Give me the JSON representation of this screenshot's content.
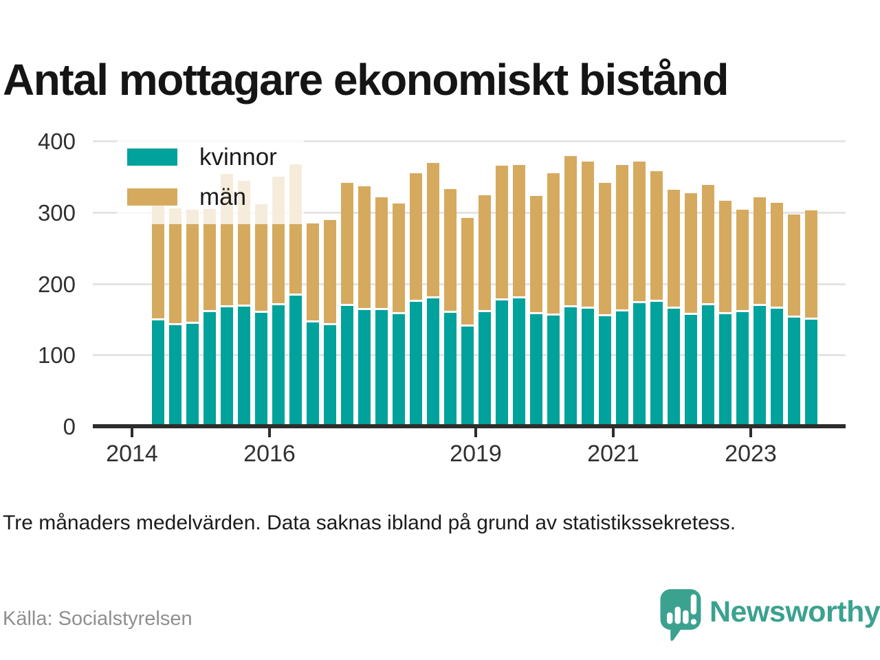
{
  "title": "Antal mottagare ekonomiskt bistånd",
  "legend": {
    "items": [
      {
        "label": "kvinnor",
        "color": "#00a29b"
      },
      {
        "label": "män",
        "color": "#d5aa5f"
      }
    ]
  },
  "footnote": "Tre månaders medelvärden. Data saknas ibland på grund av statistikssekretess.",
  "source": "Källa: Socialstyrelsen",
  "brand": {
    "name": "Newsworthy",
    "color": "#3ba28f",
    "icon": "speech-bubble-bar-chart-icon"
  },
  "colors": {
    "kvinnor": "#00a29b",
    "man": "#d5aa5f",
    "grid": "#e4e4e4",
    "axis": "#2d2d2d",
    "text": "#303030",
    "muted": "#8f8f8f"
  },
  "chart_data": {
    "type": "bar",
    "stacked": true,
    "title": "Antal mottagare ekonomiskt bistånd",
    "xlabel": "",
    "ylabel": "",
    "ylim": [
      0,
      400
    ],
    "grid": "horizontal",
    "legend_position": "top-left",
    "y_ticks": [
      {
        "value": 0,
        "label": "0"
      },
      {
        "value": 100,
        "label": "100"
      },
      {
        "value": 200,
        "label": "200"
      },
      {
        "value": 300,
        "label": "300"
      },
      {
        "value": 400,
        "label": "400"
      }
    ],
    "x_ticks": [
      {
        "year": 2014,
        "label": "2014"
      },
      {
        "year": 2016,
        "label": "2016"
      },
      {
        "year": 2019,
        "label": "2019"
      },
      {
        "year": 2021,
        "label": "2021"
      },
      {
        "year": 2023,
        "label": "2023"
      }
    ],
    "categories": [
      "2014 Q2",
      "2014 Q3",
      "2014 Q4",
      "2015 Q1",
      "2015 Q2",
      "2015 Q3",
      "2015 Q4",
      "2016 Q1",
      "2016 Q2",
      "2016 Q3",
      "2016 Q4",
      "2017 Q1",
      "2017 Q2",
      "2017 Q3",
      "2017 Q4",
      "2018 Q1",
      "2018 Q2",
      "2018 Q3",
      "2018 Q4",
      "2019 Q1",
      "2019 Q2",
      "2019 Q3",
      "2019 Q4",
      "2020 Q1",
      "2020 Q2",
      "2020 Q3",
      "2020 Q4",
      "2021 Q1",
      "2021 Q2",
      "2021 Q3",
      "2021 Q4",
      "2022 Q1",
      "2022 Q2",
      "2022 Q3",
      "2022 Q4",
      "2023 Q1",
      "2023 Q2",
      "2023 Q3",
      "2023 Q4"
    ],
    "series": [
      {
        "name": "kvinnor",
        "color": "#00a29b",
        "values": [
          148,
          142,
          144,
          160,
          167,
          168,
          159,
          170,
          183,
          146,
          142,
          169,
          163,
          163,
          157,
          174,
          179,
          159,
          140,
          160,
          176,
          179,
          157,
          155,
          167,
          165,
          154,
          161,
          173,
          174,
          165,
          156,
          170,
          157,
          160,
          169,
          165,
          152,
          149
        ]
      },
      {
        "name": "män",
        "color": "#d5aa5f",
        "values": [
          162,
          164,
          160,
          145,
          187,
          176,
          152,
          180,
          184,
          138,
          147,
          172,
          173,
          158,
          155,
          181,
          190,
          174,
          152,
          164,
          189,
          187,
          166,
          200,
          212,
          206,
          187,
          205,
          198,
          184,
          167,
          171,
          168,
          159,
          144,
          152,
          148,
          145,
          154
        ]
      }
    ]
  }
}
